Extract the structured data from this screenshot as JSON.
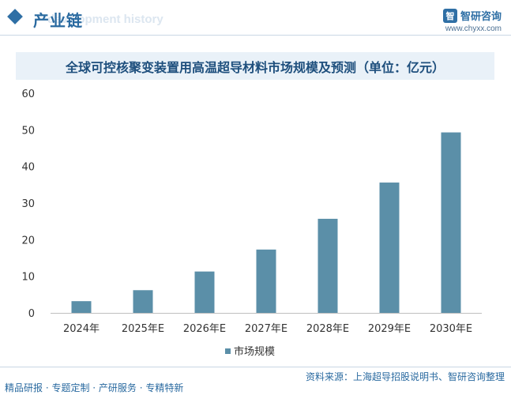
{
  "header": {
    "title": "产业链",
    "subtitle_ghost": "development history",
    "brand_logo_text": "智",
    "brand_name": "智研咨询",
    "brand_url": "www.chyxx.com"
  },
  "chart_data": {
    "type": "bar",
    "title": "全球可控核聚变装置用高温超导材料市场规模及预测（单位：亿元）",
    "categories": [
      "2024年",
      "2025年E",
      "2026年E",
      "2027年E",
      "2028年E",
      "2029年E",
      "2030年E"
    ],
    "series": [
      {
        "name": "市场规模",
        "values": [
          3.2,
          6.2,
          11.3,
          17.3,
          25.7,
          35.6,
          49.3
        ],
        "color": "#5b8fa8"
      }
    ],
    "ylim": [
      0,
      60
    ],
    "yticks": [
      0,
      10,
      20,
      30,
      40,
      50,
      60
    ],
    "grid": false,
    "legend": "bottom-center"
  },
  "footer": {
    "source": "资料来源：上海超导招股说明书、智研咨询整理",
    "slogan": "精品研报 · 专题定制 · 产研服务 · 专精特新"
  }
}
